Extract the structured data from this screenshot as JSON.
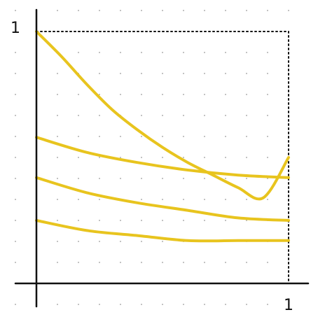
{
  "chart_data": {
    "type": "line",
    "title": "",
    "xlabel": "",
    "ylabel": "",
    "xlim": [
      0,
      1
    ],
    "ylim": [
      0,
      1
    ],
    "grid": true,
    "grid_style": "dotted",
    "box_outline": "dotted",
    "x_tick_labels": [
      "1"
    ],
    "y_tick_labels": [
      "1"
    ],
    "series": [
      {
        "x": [
          0,
          0.1,
          0.2,
          0.3,
          0.4,
          0.5,
          0.6,
          0.7,
          0.8,
          0.9,
          1.0
        ],
        "values": [
          1.0,
          0.9,
          0.79,
          0.69,
          0.61,
          0.54,
          0.48,
          0.43,
          0.38,
          0.34,
          0.5
        ]
      },
      {
        "x": [
          0,
          0.2,
          0.4,
          0.6,
          0.8,
          1.0
        ],
        "values": [
          0.58,
          0.52,
          0.48,
          0.45,
          0.43,
          0.42
        ]
      },
      {
        "x": [
          0,
          0.2,
          0.4,
          0.6,
          0.8,
          1.0
        ],
        "values": [
          0.42,
          0.36,
          0.32,
          0.29,
          0.26,
          0.25
        ]
      },
      {
        "x": [
          0,
          0.2,
          0.4,
          0.6,
          0.8,
          1.0
        ],
        "values": [
          0.25,
          0.21,
          0.19,
          0.17,
          0.17,
          0.17
        ]
      }
    ],
    "line_color": "#e8c41e",
    "axis_color": "#111111",
    "grid_color": "#b0b0b0"
  }
}
